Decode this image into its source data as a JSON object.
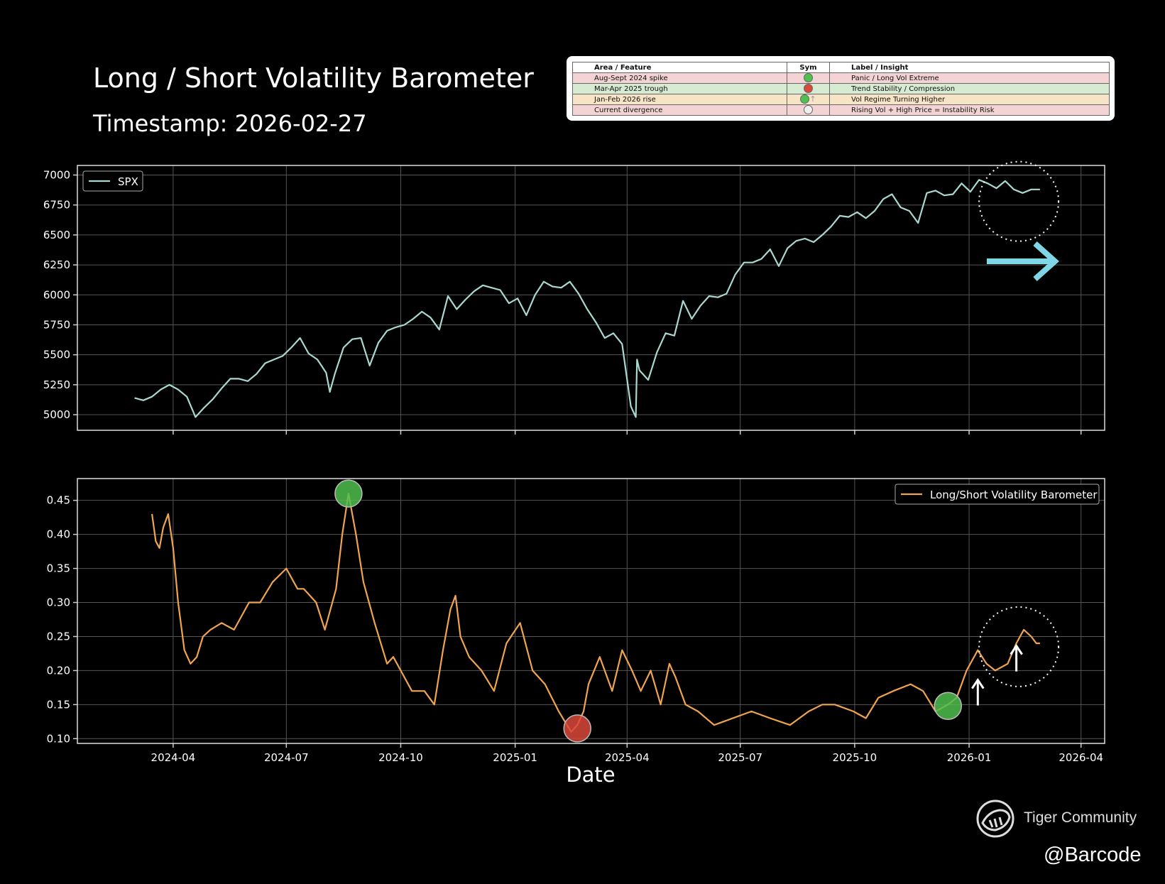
{
  "header": {
    "title": "Long / Short Volatility Barometer",
    "subtitle": "Timestamp: 2026-02-27"
  },
  "insight_table": {
    "headers": [
      "Area / Feature",
      "Sym",
      "Label / Insight"
    ],
    "rows": [
      {
        "feature": "Aug-Sept 2024 spike",
        "symbol": "green-circle-icon",
        "symbol_color": "#4fc04f",
        "insight": "Panic / Long Vol Extreme",
        "row_color": "#f3d3d3"
      },
      {
        "feature": "Mar-Apr 2025 trough",
        "symbol": "red-circle-icon",
        "symbol_color": "#d9483a",
        "insight": "Trend Stability / Compression",
        "row_color": "#d7ead2"
      },
      {
        "feature": "Jan-Feb 2026 rise",
        "symbol": "green-circle-up-arrow-icon",
        "symbol_color": "#4fc04f",
        "insight": "Vol Regime Turning Higher",
        "row_color": "#f7e3c6"
      },
      {
        "feature": "Current divergence",
        "symbol": "empty-circle-icon",
        "symbol_color": "#eeeeee",
        "insight": "Rising Vol + High Price = Instability Risk",
        "row_color": "#f3d3d3"
      }
    ]
  },
  "watermark": {
    "brand": "Tiger Community",
    "handle": "@Barcode"
  },
  "chart_data": [
    {
      "type": "line",
      "name": "spx-panel",
      "series": [
        {
          "name": "SPX",
          "color": "#a8d8d0",
          "x": [
            "2024-03-01",
            "2024-03-08",
            "2024-03-15",
            "2024-03-22",
            "2024-03-29",
            "2024-04-05",
            "2024-04-12",
            "2024-04-19",
            "2024-04-26",
            "2024-05-03",
            "2024-05-10",
            "2024-05-17",
            "2024-05-24",
            "2024-05-31",
            "2024-06-07",
            "2024-06-14",
            "2024-06-21",
            "2024-06-28",
            "2024-07-05",
            "2024-07-12",
            "2024-07-19",
            "2024-07-26",
            "2024-08-02",
            "2024-08-05",
            "2024-08-09",
            "2024-08-16",
            "2024-08-23",
            "2024-08-30",
            "2024-09-06",
            "2024-09-13",
            "2024-09-20",
            "2024-09-27",
            "2024-10-04",
            "2024-10-11",
            "2024-10-18",
            "2024-10-25",
            "2024-11-01",
            "2024-11-08",
            "2024-11-15",
            "2024-11-22",
            "2024-11-29",
            "2024-12-06",
            "2024-12-13",
            "2024-12-20",
            "2024-12-27",
            "2025-01-03",
            "2025-01-10",
            "2025-01-17",
            "2025-01-24",
            "2025-01-31",
            "2025-02-07",
            "2025-02-14",
            "2025-02-21",
            "2025-02-28",
            "2025-03-07",
            "2025-03-14",
            "2025-03-21",
            "2025-03-28",
            "2025-04-04",
            "2025-04-08",
            "2025-04-09",
            "2025-04-11",
            "2025-04-18",
            "2025-04-25",
            "2025-05-02",
            "2025-05-09",
            "2025-05-16",
            "2025-05-23",
            "2025-05-30",
            "2025-06-06",
            "2025-06-13",
            "2025-06-20",
            "2025-06-27",
            "2025-07-04",
            "2025-07-11",
            "2025-07-18",
            "2025-07-25",
            "2025-08-01",
            "2025-08-08",
            "2025-08-15",
            "2025-08-22",
            "2025-08-29",
            "2025-09-05",
            "2025-09-12",
            "2025-09-19",
            "2025-09-26",
            "2025-10-03",
            "2025-10-10",
            "2025-10-17",
            "2025-10-24",
            "2025-10-31",
            "2025-11-07",
            "2025-11-14",
            "2025-11-21",
            "2025-11-28",
            "2025-12-05",
            "2025-12-12",
            "2025-12-19",
            "2025-12-26",
            "2026-01-02",
            "2026-01-09",
            "2026-01-16",
            "2026-01-23",
            "2026-01-30",
            "2026-02-06",
            "2026-02-13",
            "2026-02-20",
            "2026-02-27"
          ],
          "values": [
            5140,
            5120,
            5150,
            5210,
            5250,
            5210,
            5150,
            4980,
            5060,
            5130,
            5220,
            5300,
            5300,
            5280,
            5340,
            5430,
            5460,
            5490,
            5560,
            5640,
            5510,
            5460,
            5350,
            5190,
            5340,
            5560,
            5630,
            5640,
            5410,
            5600,
            5700,
            5730,
            5750,
            5800,
            5860,
            5810,
            5710,
            5990,
            5880,
            5960,
            6030,
            6080,
            6060,
            6040,
            5930,
            5970,
            5830,
            6000,
            6110,
            6070,
            6060,
            6110,
            6010,
            5880,
            5770,
            5640,
            5680,
            5590,
            5070,
            4980,
            5460,
            5370,
            5290,
            5520,
            5680,
            5660,
            5950,
            5800,
            5910,
            5990,
            5980,
            6010,
            6170,
            6270,
            6270,
            6300,
            6380,
            6240,
            6390,
            6450,
            6470,
            6440,
            6500,
            6570,
            6660,
            6650,
            6690,
            6640,
            6700,
            6800,
            6840,
            6730,
            6700,
            6600,
            6850,
            6870,
            6830,
            6840,
            6930,
            6860,
            6960,
            6930,
            6890,
            6950,
            6880,
            6850,
            6880,
            6880
          ]
        }
      ],
      "xlim": [
        "2024-01-15",
        "2026-04-20"
      ],
      "ylim": [
        4870,
        7080
      ],
      "yticks": [
        5000,
        5250,
        5500,
        5750,
        6000,
        6250,
        6500,
        6750,
        7000
      ],
      "legend_placement": "top-left",
      "grid": true,
      "annotation_arrow_color": "#7fd6e6"
    },
    {
      "type": "line",
      "name": "barometer-panel",
      "series": [
        {
          "name": "Long/Short Volatility Barometer",
          "color": "#f0a450",
          "x": [
            "2024-03-15",
            "2024-03-18",
            "2024-03-21",
            "2024-03-24",
            "2024-03-28",
            "2024-04-01",
            "2024-04-05",
            "2024-04-10",
            "2024-04-15",
            "2024-04-20",
            "2024-04-25",
            "2024-05-01",
            "2024-05-10",
            "2024-05-20",
            "2024-06-01",
            "2024-06-10",
            "2024-06-20",
            "2024-07-01",
            "2024-07-10",
            "2024-07-15",
            "2024-07-25",
            "2024-08-01",
            "2024-08-10",
            "2024-08-15",
            "2024-08-20",
            "2024-08-26",
            "2024-09-01",
            "2024-09-10",
            "2024-09-20",
            "2024-09-25",
            "2024-10-01",
            "2024-10-10",
            "2024-10-20",
            "2024-10-28",
            "2024-11-04",
            "2024-11-10",
            "2024-11-14",
            "2024-11-18",
            "2024-11-25",
            "2024-12-05",
            "2024-12-15",
            "2024-12-25",
            "2025-01-05",
            "2025-01-15",
            "2025-01-25",
            "2025-02-05",
            "2025-02-15",
            "2025-02-20",
            "2025-02-25",
            "2025-03-01",
            "2025-03-10",
            "2025-03-20",
            "2025-03-28",
            "2025-04-05",
            "2025-04-12",
            "2025-04-20",
            "2025-04-28",
            "2025-05-05",
            "2025-05-10",
            "2025-05-18",
            "2025-05-28",
            "2025-06-10",
            "2025-06-25",
            "2025-07-10",
            "2025-07-25",
            "2025-08-10",
            "2025-08-25",
            "2025-09-05",
            "2025-09-15",
            "2025-09-30",
            "2025-10-10",
            "2025-10-20",
            "2025-11-01",
            "2025-11-15",
            "2025-11-25",
            "2025-12-05",
            "2025-12-15",
            "2025-12-22",
            "2025-12-30",
            "2026-01-08",
            "2026-01-15",
            "2026-01-22",
            "2026-02-01",
            "2026-02-08",
            "2026-02-14",
            "2026-02-20",
            "2026-02-24",
            "2026-02-27"
          ],
          "values": [
            0.43,
            0.39,
            0.38,
            0.41,
            0.43,
            0.38,
            0.3,
            0.23,
            0.21,
            0.22,
            0.25,
            0.26,
            0.27,
            0.26,
            0.3,
            0.3,
            0.33,
            0.35,
            0.32,
            0.32,
            0.3,
            0.26,
            0.32,
            0.4,
            0.46,
            0.4,
            0.33,
            0.27,
            0.21,
            0.22,
            0.2,
            0.17,
            0.17,
            0.15,
            0.23,
            0.29,
            0.31,
            0.25,
            0.22,
            0.2,
            0.17,
            0.24,
            0.27,
            0.2,
            0.18,
            0.14,
            0.11,
            0.12,
            0.14,
            0.18,
            0.22,
            0.17,
            0.23,
            0.2,
            0.17,
            0.2,
            0.15,
            0.21,
            0.19,
            0.15,
            0.14,
            0.12,
            0.13,
            0.14,
            0.13,
            0.12,
            0.14,
            0.15,
            0.15,
            0.14,
            0.13,
            0.16,
            0.17,
            0.18,
            0.17,
            0.14,
            0.15,
            0.16,
            0.2,
            0.23,
            0.21,
            0.2,
            0.21,
            0.24,
            0.26,
            0.25,
            0.24,
            0.24
          ]
        }
      ],
      "xlim": [
        "2024-01-15",
        "2026-04-20"
      ],
      "ylim": [
        0.093,
        0.482
      ],
      "yticks": [
        0.1,
        0.15,
        0.2,
        0.25,
        0.3,
        0.35,
        0.4,
        0.45
      ],
      "xticks": [
        "2024-04",
        "2024-07",
        "2024-10",
        "2025-01",
        "2025-04",
        "2025-07",
        "2025-10",
        "2026-01",
        "2026-04"
      ],
      "xlabel": "Date",
      "legend_placement": "top-right",
      "grid": true,
      "markers": [
        {
          "x": "2024-08-20",
          "y": 0.46,
          "color": "#4fc04f"
        },
        {
          "x": "2025-02-20",
          "y": 0.115,
          "color": "#d9483a"
        },
        {
          "x": "2025-12-15",
          "y": 0.148,
          "color": "#4fc04f"
        }
      ],
      "up_arrows": [
        {
          "x": "2026-01-08",
          "y": 0.155
        },
        {
          "x": "2026-02-08",
          "y": 0.205
        }
      ]
    }
  ]
}
